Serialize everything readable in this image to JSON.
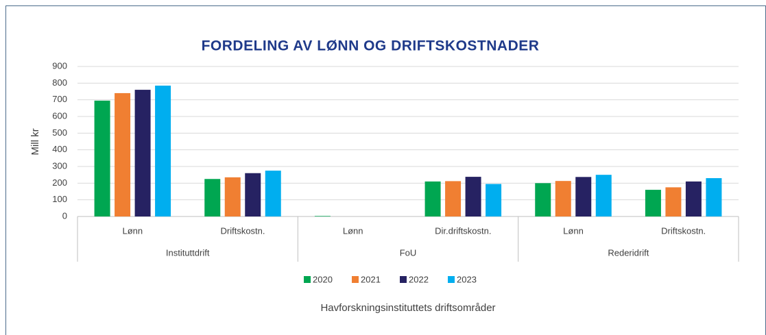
{
  "chart_data": {
    "type": "bar",
    "title": "FORDELING AV LØNN OG DRIFTSKOSTNADER",
    "ylabel": "Mill kr",
    "xlabel": "Havforskningsinstituttets driftsområder",
    "categories": [
      "Lønn",
      "Driftskostn.",
      "Lønn",
      "Dir.driftskostn.",
      "Lønn",
      "Driftskostn."
    ],
    "groups": [
      "Instituttdrift",
      "FoU",
      "Rederidrift"
    ],
    "series": [
      {
        "name": "2020",
        "color": "#00a651",
        "values": [
          695,
          225,
          3,
          210,
          200,
          160
        ]
      },
      {
        "name": "2021",
        "color": "#f07f32",
        "values": [
          740,
          235,
          0,
          212,
          213,
          175
        ]
      },
      {
        "name": "2022",
        "color": "#262262",
        "values": [
          760,
          260,
          0,
          238,
          237,
          210
        ]
      },
      {
        "name": "2023",
        "color": "#00aeef",
        "values": [
          785,
          275,
          0,
          195,
          250,
          230
        ]
      }
    ],
    "ylim": [
      0,
      900
    ],
    "yticks": [
      0,
      100,
      200,
      300,
      400,
      500,
      600,
      700,
      800,
      900
    ],
    "grid": true,
    "legend": "bottom"
  }
}
